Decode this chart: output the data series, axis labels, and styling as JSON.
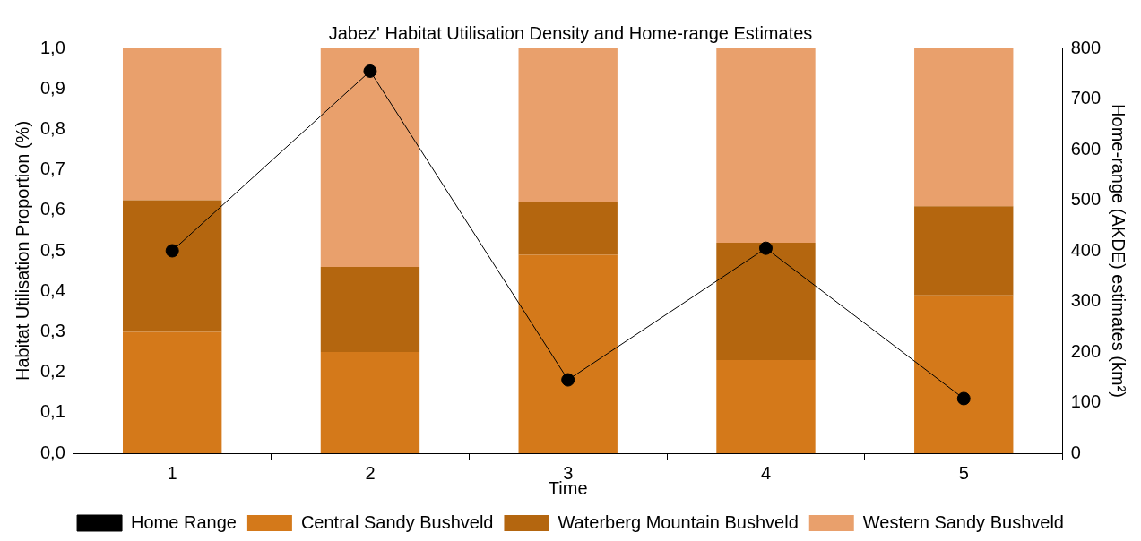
{
  "chart_data": {
    "type": "bar",
    "title": "Jabez' Habitat Utilisation Density and Home-range Estimates",
    "xlabel": "Time",
    "ylabel": "Habitat Utilisation Proportion (%)",
    "y2label": "Home-range (AKDE) estimates (km²)",
    "categories": [
      "1",
      "2",
      "3",
      "4",
      "5"
    ],
    "stacked": true,
    "series": [
      {
        "name": "Central Sandy Bushveld",
        "color": "#d4791a",
        "values": [
          0.3,
          0.25,
          0.49,
          0.23,
          0.39
        ]
      },
      {
        "name": "Waterberg Mountain Bushveld",
        "color": "#b4660f",
        "values": [
          0.325,
          0.21,
          0.13,
          0.29,
          0.22
        ]
      },
      {
        "name": "Western Sandy Bushveld",
        "color": "#e9a06c",
        "values": [
          0.375,
          0.54,
          0.38,
          0.48,
          0.39
        ]
      },
      {
        "name": "Home Range",
        "type": "line",
        "axis": "y2",
        "color": "#000000",
        "marker": "circle",
        "values": [
          400,
          755,
          145,
          405,
          108
        ]
      }
    ],
    "ylim": [
      0,
      1
    ],
    "yticks": [
      {
        "value": 0,
        "label": "0,0"
      },
      {
        "value": 0.1,
        "label": "0,1"
      },
      {
        "value": 0.2,
        "label": "0,2"
      },
      {
        "value": 0.3,
        "label": "0,3"
      },
      {
        "value": 0.4,
        "label": "0,4"
      },
      {
        "value": 0.5,
        "label": "0,5"
      },
      {
        "value": 0.6,
        "label": "0,6"
      },
      {
        "value": 0.7,
        "label": "0,7"
      },
      {
        "value": 0.8,
        "label": "0,8"
      },
      {
        "value": 0.9,
        "label": "0,9"
      },
      {
        "value": 1,
        "label": "1,0"
      }
    ],
    "y2lim": [
      0,
      800
    ],
    "y2ticks": [
      0,
      100,
      200,
      300,
      400,
      500,
      600,
      700,
      800
    ],
    "grid": false,
    "legend": "bottom"
  }
}
